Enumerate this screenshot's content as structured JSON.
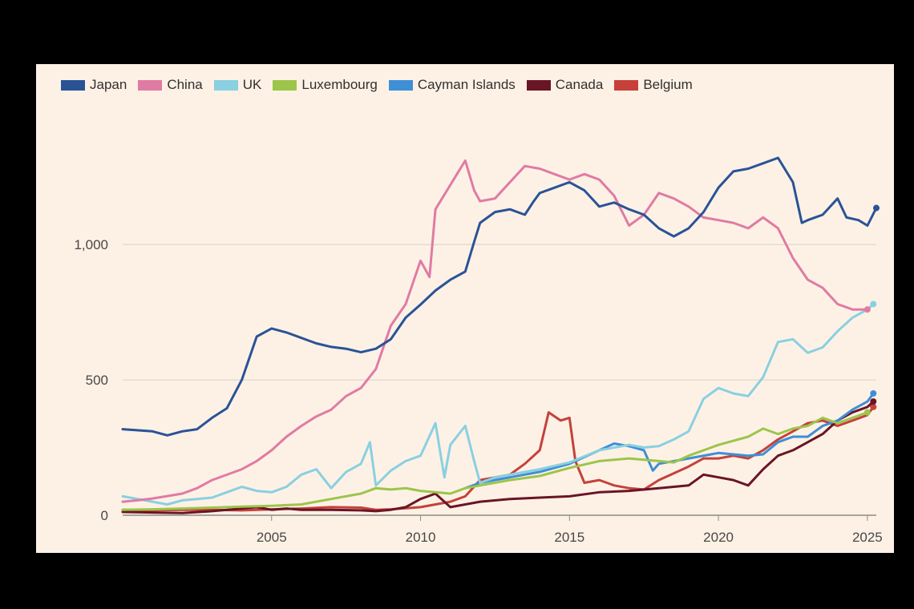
{
  "chart_data": {
    "type": "line",
    "title": "",
    "xlabel": "",
    "ylabel": "",
    "xlim": [
      2000,
      2025.3
    ],
    "ylim": [
      0,
      1400
    ],
    "x_ticks": [
      2005,
      2010,
      2015,
      2020,
      2025
    ],
    "x_tick_labels": [
      "2005",
      "2010",
      "2015",
      "2020",
      "2025"
    ],
    "y_ticks": [
      0,
      500,
      1000
    ],
    "y_tick_labels": [
      "0",
      "500",
      "1,000"
    ],
    "grid": "horizontal",
    "legend_position": "top-left",
    "series": [
      {
        "name": "Japan",
        "color": "#2a5396",
        "points": [
          [
            2000,
            318
          ],
          [
            2001,
            310
          ],
          [
            2001.5,
            295
          ],
          [
            2002,
            310
          ],
          [
            2002.5,
            318
          ],
          [
            2003,
            360
          ],
          [
            2003.5,
            395
          ],
          [
            2004,
            500
          ],
          [
            2004.5,
            660
          ],
          [
            2005,
            690
          ],
          [
            2005.5,
            675
          ],
          [
            2006,
            655
          ],
          [
            2006.5,
            635
          ],
          [
            2007,
            622
          ],
          [
            2007.5,
            615
          ],
          [
            2008,
            602
          ],
          [
            2008.5,
            615
          ],
          [
            2009,
            650
          ],
          [
            2009.5,
            730
          ],
          [
            2010,
            778
          ],
          [
            2010.5,
            830
          ],
          [
            2011,
            870
          ],
          [
            2011.5,
            900
          ],
          [
            2011.8,
            1010
          ],
          [
            2012,
            1080
          ],
          [
            2012.5,
            1120
          ],
          [
            2013,
            1130
          ],
          [
            2013.5,
            1110
          ],
          [
            2013.8,
            1160
          ],
          [
            2014,
            1190
          ],
          [
            2014.5,
            1210
          ],
          [
            2015,
            1230
          ],
          [
            2015.5,
            1200
          ],
          [
            2016,
            1140
          ],
          [
            2016.5,
            1155
          ],
          [
            2017,
            1130
          ],
          [
            2017.5,
            1110
          ],
          [
            2018,
            1060
          ],
          [
            2018.5,
            1030
          ],
          [
            2019,
            1060
          ],
          [
            2019.5,
            1120
          ],
          [
            2020,
            1210
          ],
          [
            2020.5,
            1270
          ],
          [
            2021,
            1280
          ],
          [
            2021.5,
            1300
          ],
          [
            2022,
            1320
          ],
          [
            2022.5,
            1230
          ],
          [
            2022.8,
            1080
          ],
          [
            2023,
            1090
          ],
          [
            2023.5,
            1110
          ],
          [
            2024,
            1170
          ],
          [
            2024.3,
            1100
          ],
          [
            2024.7,
            1090
          ],
          [
            2025,
            1070
          ],
          [
            2025.3,
            1135
          ]
        ]
      },
      {
        "name": "China",
        "color": "#e07ba3",
        "points": [
          [
            2000,
            50
          ],
          [
            2000.5,
            55
          ],
          [
            2001,
            62
          ],
          [
            2002,
            80
          ],
          [
            2002.5,
            100
          ],
          [
            2003,
            130
          ],
          [
            2004,
            170
          ],
          [
            2004.5,
            200
          ],
          [
            2005,
            240
          ],
          [
            2005.5,
            290
          ],
          [
            2006,
            330
          ],
          [
            2006.5,
            365
          ],
          [
            2007,
            390
          ],
          [
            2007.5,
            440
          ],
          [
            2008,
            470
          ],
          [
            2008.5,
            540
          ],
          [
            2009,
            700
          ],
          [
            2009.5,
            780
          ],
          [
            2010,
            940
          ],
          [
            2010.3,
            880
          ],
          [
            2010.5,
            1130
          ],
          [
            2011,
            1220
          ],
          [
            2011.5,
            1310
          ],
          [
            2011.8,
            1200
          ],
          [
            2012,
            1160
          ],
          [
            2012.5,
            1170
          ],
          [
            2013,
            1230
          ],
          [
            2013.5,
            1290
          ],
          [
            2014,
            1280
          ],
          [
            2014.5,
            1260
          ],
          [
            2015,
            1240
          ],
          [
            2015.5,
            1260
          ],
          [
            2016,
            1240
          ],
          [
            2016.5,
            1180
          ],
          [
            2017,
            1070
          ],
          [
            2017.5,
            1110
          ],
          [
            2018,
            1190
          ],
          [
            2018.5,
            1170
          ],
          [
            2019,
            1140
          ],
          [
            2019.5,
            1100
          ],
          [
            2020,
            1090
          ],
          [
            2020.5,
            1080
          ],
          [
            2021,
            1060
          ],
          [
            2021.5,
            1100
          ],
          [
            2022,
            1060
          ],
          [
            2022.5,
            950
          ],
          [
            2023,
            870
          ],
          [
            2023.5,
            840
          ],
          [
            2024,
            780
          ],
          [
            2024.5,
            760
          ],
          [
            2025,
            760
          ]
        ]
      },
      {
        "name": "UK",
        "color": "#89d0e0",
        "points": [
          [
            2000,
            70
          ],
          [
            2000.5,
            60
          ],
          [
            2001,
            50
          ],
          [
            2001.5,
            40
          ],
          [
            2002,
            55
          ],
          [
            2002.5,
            60
          ],
          [
            2003,
            65
          ],
          [
            2003.5,
            85
          ],
          [
            2004,
            105
          ],
          [
            2004.5,
            90
          ],
          [
            2005,
            85
          ],
          [
            2005.5,
            105
          ],
          [
            2006,
            150
          ],
          [
            2006.5,
            170
          ],
          [
            2007,
            100
          ],
          [
            2007.5,
            160
          ],
          [
            2008,
            190
          ],
          [
            2008.3,
            270
          ],
          [
            2008.5,
            110
          ],
          [
            2009,
            165
          ],
          [
            2009.5,
            200
          ],
          [
            2010,
            220
          ],
          [
            2010.5,
            340
          ],
          [
            2010.8,
            140
          ],
          [
            2011,
            260
          ],
          [
            2011.5,
            330
          ],
          [
            2011.8,
            200
          ],
          [
            2012,
            120
          ],
          [
            2012.5,
            140
          ],
          [
            2013,
            150
          ],
          [
            2014,
            170
          ],
          [
            2015,
            195
          ],
          [
            2016,
            240
          ],
          [
            2017,
            260
          ],
          [
            2017.5,
            250
          ],
          [
            2018,
            255
          ],
          [
            2018.5,
            280
          ],
          [
            2019,
            310
          ],
          [
            2019.5,
            430
          ],
          [
            2020,
            470
          ],
          [
            2020.5,
            450
          ],
          [
            2021,
            440
          ],
          [
            2021.5,
            510
          ],
          [
            2022,
            640
          ],
          [
            2022.5,
            650
          ],
          [
            2023,
            600
          ],
          [
            2023.5,
            620
          ],
          [
            2024,
            680
          ],
          [
            2024.5,
            730
          ],
          [
            2025,
            760
          ],
          [
            2025.2,
            780
          ]
        ]
      },
      {
        "name": "Luxembourg",
        "color": "#9cc54a",
        "points": [
          [
            2000,
            20
          ],
          [
            2001,
            22
          ],
          [
            2002,
            25
          ],
          [
            2003,
            28
          ],
          [
            2004,
            32
          ],
          [
            2005,
            35
          ],
          [
            2006,
            40
          ],
          [
            2007,
            60
          ],
          [
            2008,
            80
          ],
          [
            2008.5,
            100
          ],
          [
            2009,
            95
          ],
          [
            2009.5,
            100
          ],
          [
            2010,
            90
          ],
          [
            2010.5,
            85
          ],
          [
            2011,
            80
          ],
          [
            2011.5,
            100
          ],
          [
            2012,
            110
          ],
          [
            2013,
            130
          ],
          [
            2014,
            145
          ],
          [
            2015,
            175
          ],
          [
            2016,
            200
          ],
          [
            2017,
            210
          ],
          [
            2018,
            200
          ],
          [
            2018.5,
            195
          ],
          [
            2019,
            220
          ],
          [
            2020,
            260
          ],
          [
            2021,
            290
          ],
          [
            2021.5,
            320
          ],
          [
            2022,
            300
          ],
          [
            2022.5,
            320
          ],
          [
            2023,
            330
          ],
          [
            2023.5,
            360
          ],
          [
            2024,
            340
          ],
          [
            2025,
            380
          ]
        ]
      },
      {
        "name": "Cayman Islands",
        "color": "#3e8fd6",
        "points": [
          [
            2011.5,
            100
          ],
          [
            2012,
            120
          ],
          [
            2013,
            140
          ],
          [
            2014,
            160
          ],
          [
            2015,
            190
          ],
          [
            2016,
            240
          ],
          [
            2016.5,
            265
          ],
          [
            2017,
            255
          ],
          [
            2017.5,
            240
          ],
          [
            2017.8,
            165
          ],
          [
            2018,
            190
          ],
          [
            2019,
            210
          ],
          [
            2020,
            230
          ],
          [
            2021,
            220
          ],
          [
            2021.5,
            225
          ],
          [
            2022,
            270
          ],
          [
            2022.5,
            290
          ],
          [
            2023,
            290
          ],
          [
            2023.5,
            330
          ],
          [
            2024,
            350
          ],
          [
            2024.5,
            390
          ],
          [
            2025,
            420
          ],
          [
            2025.2,
            450
          ]
        ]
      },
      {
        "name": "Canada",
        "color": "#6a1526",
        "points": [
          [
            2000,
            12
          ],
          [
            2001,
            10
          ],
          [
            2002,
            8
          ],
          [
            2003,
            15
          ],
          [
            2004,
            25
          ],
          [
            2004.5,
            30
          ],
          [
            2005,
            20
          ],
          [
            2005.5,
            25
          ],
          [
            2006,
            20
          ],
          [
            2007,
            20
          ],
          [
            2008,
            18
          ],
          [
            2008.5,
            15
          ],
          [
            2009,
            20
          ],
          [
            2009.5,
            30
          ],
          [
            2010,
            60
          ],
          [
            2010.5,
            80
          ],
          [
            2011,
            30
          ],
          [
            2011.5,
            40
          ],
          [
            2012,
            50
          ],
          [
            2013,
            60
          ],
          [
            2014,
            65
          ],
          [
            2015,
            70
          ],
          [
            2016,
            85
          ],
          [
            2017,
            90
          ],
          [
            2018,
            100
          ],
          [
            2019,
            110
          ],
          [
            2019.5,
            150
          ],
          [
            2020,
            140
          ],
          [
            2020.5,
            130
          ],
          [
            2021,
            110
          ],
          [
            2021.5,
            170
          ],
          [
            2022,
            220
          ],
          [
            2022.5,
            240
          ],
          [
            2023,
            270
          ],
          [
            2023.5,
            300
          ],
          [
            2024,
            350
          ],
          [
            2024.5,
            380
          ],
          [
            2025,
            400
          ],
          [
            2025.2,
            420
          ]
        ]
      },
      {
        "name": "Belgium",
        "color": "#c5413a",
        "points": [
          [
            2000,
            20
          ],
          [
            2001,
            18
          ],
          [
            2002,
            20
          ],
          [
            2003,
            20
          ],
          [
            2004,
            18
          ],
          [
            2005,
            22
          ],
          [
            2006,
            25
          ],
          [
            2007,
            30
          ],
          [
            2008,
            28
          ],
          [
            2008.5,
            20
          ],
          [
            2009,
            22
          ],
          [
            2010,
            30
          ],
          [
            2010.5,
            40
          ],
          [
            2011,
            50
          ],
          [
            2011.5,
            70
          ],
          [
            2012,
            130
          ],
          [
            2013,
            150
          ],
          [
            2013.5,
            190
          ],
          [
            2014,
            240
          ],
          [
            2014.3,
            380
          ],
          [
            2014.7,
            350
          ],
          [
            2015,
            360
          ],
          [
            2015.2,
            200
          ],
          [
            2015.5,
            120
          ],
          [
            2016,
            130
          ],
          [
            2016.5,
            110
          ],
          [
            2017,
            100
          ],
          [
            2017.5,
            95
          ],
          [
            2018,
            130
          ],
          [
            2019,
            180
          ],
          [
            2019.5,
            210
          ],
          [
            2020,
            210
          ],
          [
            2020.5,
            220
          ],
          [
            2021,
            210
          ],
          [
            2021.5,
            240
          ],
          [
            2022,
            280
          ],
          [
            2022.5,
            310
          ],
          [
            2023,
            340
          ],
          [
            2023.5,
            350
          ],
          [
            2024,
            330
          ],
          [
            2024.5,
            350
          ],
          [
            2025,
            370
          ],
          [
            2025.2,
            400
          ]
        ]
      }
    ]
  }
}
